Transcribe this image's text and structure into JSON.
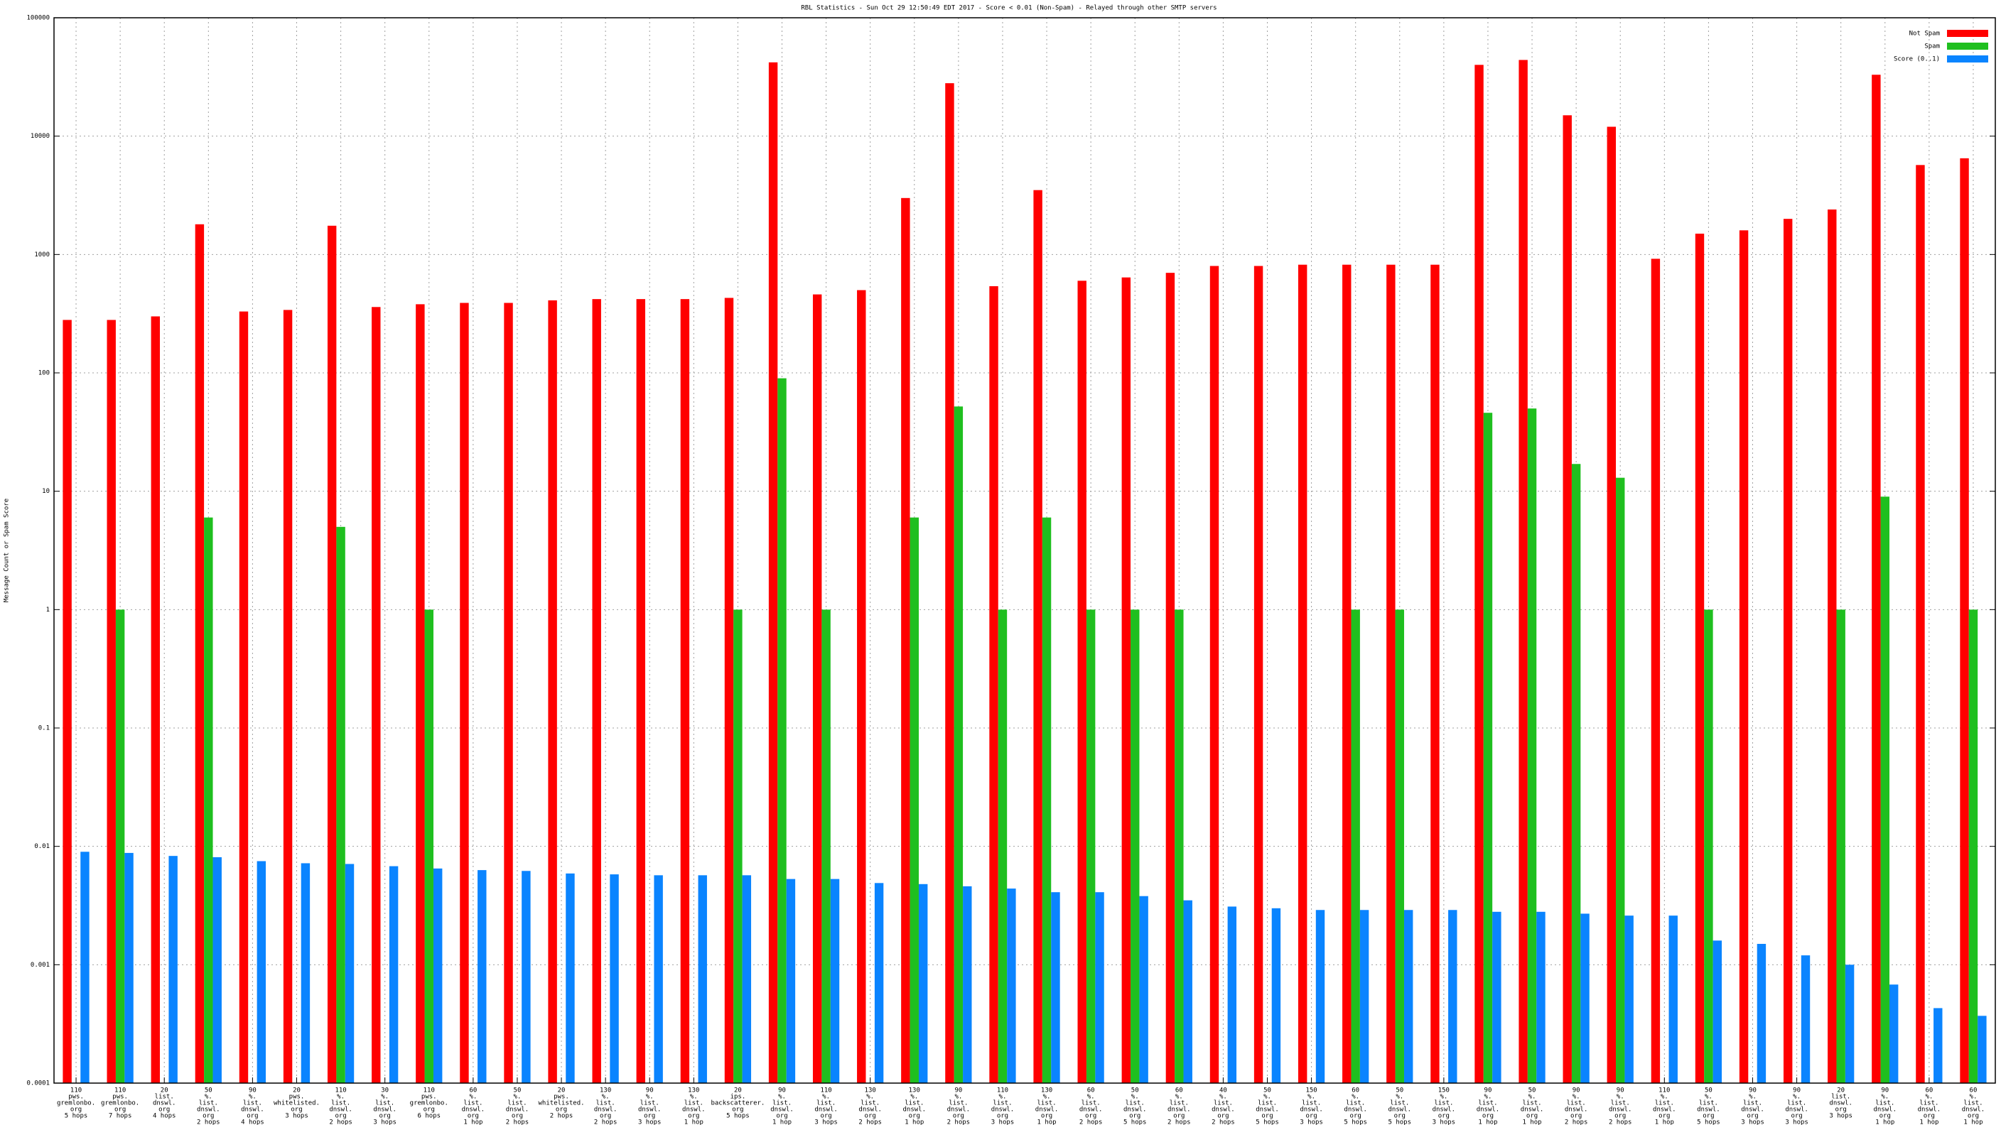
{
  "chart_data": {
    "type": "bar",
    "title": "RBL Statistics - Sun Oct 29 12:50:49 EDT 2017 - Score < 0.01 (Non-Spam) - Relayed through other SMTP servers",
    "y_label": "Message Count or Spam Score",
    "log_scale": true,
    "grid": true,
    "legend": "top-right",
    "ylim": [
      0.0001,
      100000
    ],
    "yticks": [
      0.0001,
      0.001,
      0.01,
      0.1,
      1,
      10,
      100,
      1000,
      10000,
      100000
    ],
    "categories": [
      [
        "110",
        "pws.",
        "gremlonbo.",
        "org",
        "5 hops"
      ],
      [
        "110",
        "pws.",
        "gremlonbo.",
        "org",
        "7 hops"
      ],
      [
        "20",
        "list.",
        "dnswl.",
        "org",
        "4 hops"
      ],
      [
        "50",
        "%.",
        "list.",
        "dnswl.",
        "org",
        "2 hops"
      ],
      [
        "90",
        "%.",
        "list.",
        "dnswl.",
        "org",
        "4 hops"
      ],
      [
        "20",
        "pws.",
        "whitelisted.",
        "org",
        "3 hops"
      ],
      [
        "110",
        "%.",
        "list.",
        "dnswl.",
        "org",
        "2 hops"
      ],
      [
        "30",
        "%.",
        "list.",
        "dnswl.",
        "org",
        "3 hops"
      ],
      [
        "110",
        "pws.",
        "gremlonbo.",
        "org",
        "6 hops"
      ],
      [
        "60",
        "%.",
        "list.",
        "dnswl.",
        "org",
        "1 hop"
      ],
      [
        "50",
        "%.",
        "list.",
        "dnswl.",
        "org",
        "2 hops"
      ],
      [
        "20",
        "pws.",
        "whitelisted.",
        "org",
        "2 hops"
      ],
      [
        "130",
        "%.",
        "list.",
        "dnswl.",
        "org",
        "2 hops"
      ],
      [
        "90",
        "%.",
        "list.",
        "dnswl.",
        "org",
        "3 hops"
      ],
      [
        "130",
        "%.",
        "list.",
        "dnswl.",
        "org",
        "1 hop"
      ],
      [
        "20",
        "ips.",
        "backscatterer.",
        "org",
        "5 hops"
      ],
      [
        "90",
        "%.",
        "list.",
        "dnswl.",
        "org",
        "1 hop"
      ],
      [
        "110",
        "%.",
        "list.",
        "dnswl.",
        "org",
        "3 hops"
      ],
      [
        "130",
        "%.",
        "list.",
        "dnswl.",
        "org",
        "2 hops"
      ],
      [
        "130",
        "%.",
        "list.",
        "dnswl.",
        "org",
        "1 hop"
      ],
      [
        "90",
        "%.",
        "list.",
        "dnswl.",
        "org",
        "2 hops"
      ],
      [
        "110",
        "%.",
        "list.",
        "dnswl.",
        "org",
        "3 hops"
      ],
      [
        "130",
        "%.",
        "list.",
        "dnswl.",
        "org",
        "1 hop"
      ],
      [
        "60",
        "%.",
        "list.",
        "dnswl.",
        "org",
        "2 hops"
      ],
      [
        "50",
        "%.",
        "list.",
        "dnswl.",
        "org",
        "5 hops"
      ],
      [
        "60",
        "%.",
        "list.",
        "dnswl.",
        "org",
        "2 hops"
      ],
      [
        "40",
        "%.",
        "list.",
        "dnswl.",
        "org",
        "2 hops"
      ],
      [
        "50",
        "%.",
        "list.",
        "dnswl.",
        "org",
        "5 hops"
      ],
      [
        "150",
        "%.",
        "list.",
        "dnswl.",
        "org",
        "3 hops"
      ],
      [
        "60",
        "%.",
        "list.",
        "dnswl.",
        "org",
        "5 hops"
      ],
      [
        "50",
        "%.",
        "list.",
        "dnswl.",
        "org",
        "5 hops"
      ],
      [
        "150",
        "%.",
        "list.",
        "dnswl.",
        "org",
        "3 hops"
      ],
      [
        "90",
        "%.",
        "list.",
        "dnswl.",
        "org",
        "1 hop"
      ],
      [
        "50",
        "%.",
        "list.",
        "dnswl.",
        "org",
        "1 hop"
      ],
      [
        "90",
        "%.",
        "list.",
        "dnswl.",
        "org",
        "2 hops"
      ],
      [
        "90",
        "%.",
        "list.",
        "dnswl.",
        "org",
        "2 hops"
      ],
      [
        "110",
        "%.",
        "list.",
        "dnswl.",
        "org",
        "1 hop"
      ],
      [
        "50",
        "%.",
        "list.",
        "dnswl.",
        "org",
        "5 hops"
      ],
      [
        "90",
        "%.",
        "list.",
        "dnswl.",
        "org",
        "3 hops"
      ],
      [
        "90",
        "%.",
        "list.",
        "dnswl.",
        "org",
        "3 hops"
      ],
      [
        "20",
        "list.",
        "dnswl.",
        "org",
        "3 hops"
      ],
      [
        "90",
        "%.",
        "list.",
        "dnswl.",
        "org",
        "1 hop"
      ],
      [
        "60",
        "%.",
        "list.",
        "dnswl.",
        "org",
        "1 hop"
      ],
      [
        "60",
        "%.",
        "list.",
        "dnswl.",
        "org",
        "1 hop"
      ]
    ],
    "series": [
      {
        "name": "Not Spam",
        "color": "#ff0000",
        "values": [
          280,
          280,
          300,
          1800,
          330,
          340,
          1750,
          360,
          380,
          390,
          390,
          410,
          420,
          420,
          420,
          430,
          42000,
          460,
          500,
          3000,
          28000,
          540,
          3500,
          600,
          640,
          700,
          800,
          800,
          820,
          820,
          820,
          820,
          40000,
          44000,
          15000,
          12000,
          920,
          1500,
          1600,
          2000,
          2400,
          33000,
          5700,
          6500
        ]
      },
      {
        "name": "Spam",
        "color": "#1fbf1f",
        "values": [
          null,
          1,
          null,
          6,
          null,
          null,
          5,
          null,
          1,
          null,
          null,
          null,
          null,
          null,
          null,
          1,
          90,
          1,
          null,
          6,
          52,
          1,
          6,
          1,
          1,
          1,
          null,
          null,
          null,
          1,
          1,
          null,
          46,
          50,
          17,
          13,
          null,
          1,
          null,
          null,
          1,
          9,
          null,
          1
        ]
      },
      {
        "name": "Score (0..1)",
        "color": "#0a84ff",
        "values": [
          0.009,
          0.0088,
          0.0083,
          0.0081,
          0.0075,
          0.0072,
          0.0071,
          0.0068,
          0.0065,
          0.0063,
          0.0062,
          0.0059,
          0.0058,
          0.0057,
          0.0057,
          0.0057,
          0.0053,
          0.0053,
          0.0049,
          0.0048,
          0.0046,
          0.0044,
          0.0041,
          0.0041,
          0.0038,
          0.0035,
          0.0031,
          0.003,
          0.0029,
          0.0029,
          0.0029,
          0.0029,
          0.0028,
          0.0028,
          0.0027,
          0.0026,
          0.0026,
          0.0016,
          0.0015,
          0.0012,
          0.001,
          0.00068,
          0.00043,
          0.00037
        ]
      }
    ]
  }
}
